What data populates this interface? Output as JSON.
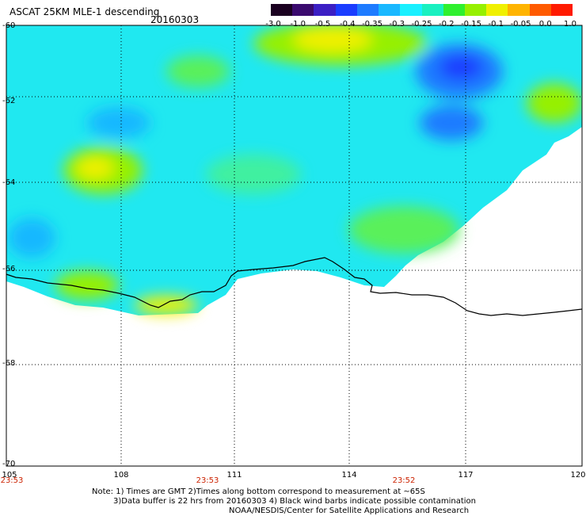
{
  "header": {
    "title": "ASCAT 25KM MLE-1 descending",
    "date": "20160303"
  },
  "colorbar": {
    "labels": [
      "-3.0",
      "-1.0",
      "-0.5",
      "-0.4",
      "-0.35",
      "-0.3",
      "-0.25",
      "-0.2",
      "-0.15",
      "-0.1",
      "-0.05",
      "0.0",
      "1.0"
    ],
    "colors": [
      "#1a0020",
      "#3a0a6e",
      "#3b1fc4",
      "#1a3cff",
      "#1e7bff",
      "#19b8ff",
      "#19f0ff",
      "#19f0c0",
      "#2ff02f",
      "#96f000",
      "#f0f000",
      "#ffb400",
      "#ff5a00",
      "#ff1a00"
    ]
  },
  "map": {
    "lat_labels": [
      "-60",
      "-62",
      "-64",
      "-66",
      "-68",
      "-70"
    ],
    "lon_labels": [
      "105",
      "108",
      "111",
      "114",
      "117",
      "120"
    ],
    "time_labels": [
      "23:53",
      "23:53",
      "23:52"
    ]
  },
  "notes": {
    "line1": "Note: 1) Times are GMT 2)Times along bottom correspond to measurement at ~65S",
    "line2": "3)Data buffer is 22 hrs from 20160303 4) Black wind barbs indicate possible contamination",
    "line3": "NOAA/NESDIS/Center for Satellite Applications and Research"
  }
}
